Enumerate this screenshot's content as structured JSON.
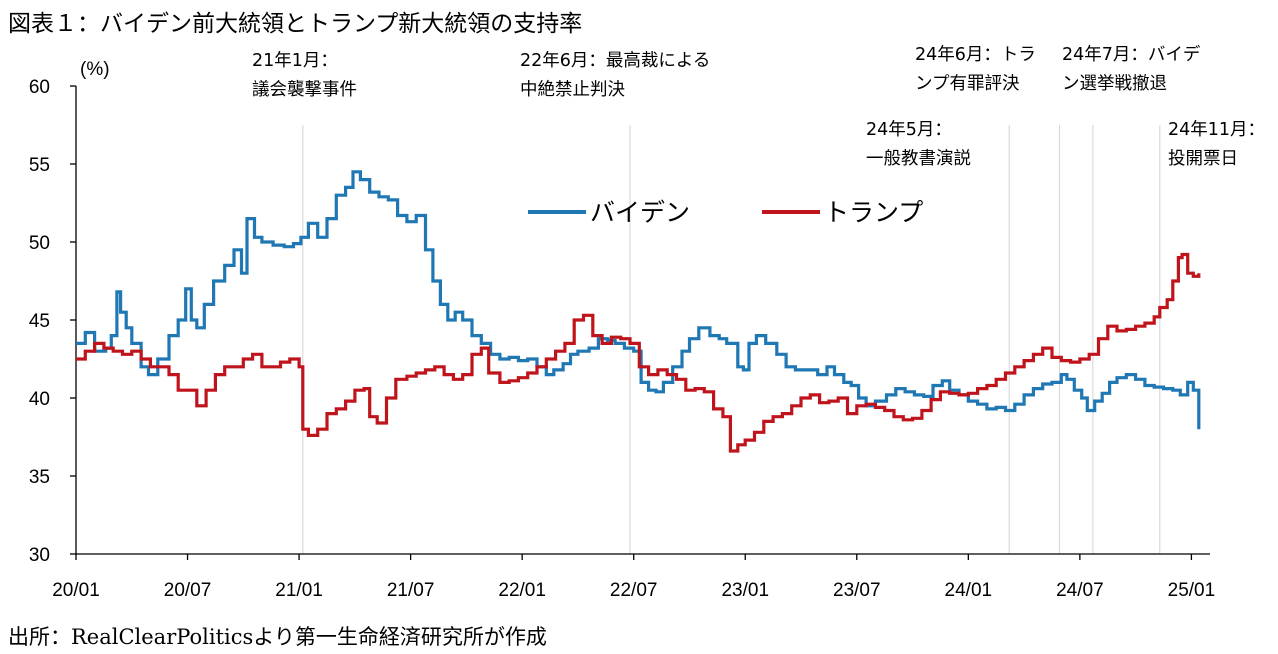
{
  "title": "図表１：バイデン前大統領とトランプ新大統領の支持率",
  "source": "出所：RealClearPoliticsより第一生命経済研究所が作成",
  "chart_data": {
    "type": "line",
    "title": "図表１：バイデン前大統領とトランプ新大統領の支持率",
    "ylabel": "(%)",
    "xlabel": "",
    "ylim": [
      30,
      60
    ],
    "yticks": [
      "30",
      "35",
      "40",
      "45",
      "50",
      "55",
      "60"
    ],
    "x_range_months": [
      0,
      61
    ],
    "xticks": [
      {
        "label": "20/01",
        "m": 0
      },
      {
        "label": "20/07",
        "m": 6
      },
      {
        "label": "21/01",
        "m": 12
      },
      {
        "label": "21/07",
        "m": 18
      },
      {
        "label": "22/01",
        "m": 24
      },
      {
        "label": "22/07",
        "m": 30
      },
      {
        "label": "23/01",
        "m": 36
      },
      {
        "label": "23/07",
        "m": 42
      },
      {
        "label": "24/01",
        "m": 48
      },
      {
        "label": "24/07",
        "m": 54
      },
      {
        "label": "25/01",
        "m": 60
      }
    ],
    "legend": {
      "placement": "top-center"
    },
    "series": [
      {
        "name": "バイデン",
        "color": "#1f77b4",
        "points": [
          [
            0.0,
            43.5
          ],
          [
            0.5,
            44.2
          ],
          [
            1.0,
            43.0
          ],
          [
            1.6,
            43.2
          ],
          [
            1.9,
            44.0
          ],
          [
            2.2,
            46.8
          ],
          [
            2.4,
            45.5
          ],
          [
            2.7,
            44.5
          ],
          [
            3.0,
            43.5
          ],
          [
            3.5,
            42.0
          ],
          [
            3.9,
            41.5
          ],
          [
            4.4,
            42.5
          ],
          [
            5.0,
            44.0
          ],
          [
            5.5,
            45.0
          ],
          [
            5.9,
            47.0
          ],
          [
            6.2,
            45.0
          ],
          [
            6.5,
            44.5
          ],
          [
            6.9,
            46.0
          ],
          [
            7.4,
            47.5
          ],
          [
            8.0,
            48.5
          ],
          [
            8.5,
            49.5
          ],
          [
            8.9,
            48.0
          ],
          [
            9.2,
            51.5
          ],
          [
            9.6,
            50.3
          ],
          [
            10.0,
            50.0
          ],
          [
            10.6,
            49.8
          ],
          [
            11.2,
            49.7
          ],
          [
            11.7,
            49.9
          ],
          [
            12.1,
            50.3
          ],
          [
            12.5,
            51.2
          ],
          [
            13.0,
            50.3
          ],
          [
            13.5,
            51.5
          ],
          [
            14.0,
            53.0
          ],
          [
            14.5,
            53.5
          ],
          [
            14.9,
            54.5
          ],
          [
            15.3,
            54.0
          ],
          [
            15.8,
            53.2
          ],
          [
            16.3,
            52.9
          ],
          [
            16.8,
            52.7
          ],
          [
            17.3,
            51.7
          ],
          [
            17.8,
            51.3
          ],
          [
            18.3,
            51.7
          ],
          [
            18.8,
            49.5
          ],
          [
            19.2,
            47.5
          ],
          [
            19.6,
            46.0
          ],
          [
            20.0,
            45.0
          ],
          [
            20.4,
            45.5
          ],
          [
            20.8,
            45.0
          ],
          [
            21.3,
            44.0
          ],
          [
            21.8,
            43.5
          ],
          [
            22.3,
            42.8
          ],
          [
            22.8,
            42.5
          ],
          [
            23.3,
            42.6
          ],
          [
            23.8,
            42.4
          ],
          [
            24.3,
            42.5
          ],
          [
            24.8,
            42.0
          ],
          [
            25.3,
            41.5
          ],
          [
            25.7,
            41.8
          ],
          [
            26.2,
            42.2
          ],
          [
            26.6,
            42.8
          ],
          [
            27.0,
            43.0
          ],
          [
            27.6,
            43.2
          ],
          [
            28.1,
            43.8
          ],
          [
            28.6,
            43.7
          ],
          [
            29.0,
            43.5
          ],
          [
            29.5,
            43.2
          ],
          [
            30.0,
            43.0
          ],
          [
            30.4,
            41.0
          ],
          [
            30.8,
            40.5
          ],
          [
            31.2,
            40.4
          ],
          [
            31.6,
            41.0
          ],
          [
            32.1,
            42.0
          ],
          [
            32.6,
            43.0
          ],
          [
            33.0,
            43.8
          ],
          [
            33.5,
            44.5
          ],
          [
            34.1,
            44.0
          ],
          [
            34.6,
            43.8
          ],
          [
            35.0,
            43.5
          ],
          [
            35.6,
            42.0
          ],
          [
            35.9,
            41.8
          ],
          [
            36.2,
            43.5
          ],
          [
            36.6,
            44.0
          ],
          [
            37.1,
            43.5
          ],
          [
            37.7,
            42.8
          ],
          [
            38.2,
            42.0
          ],
          [
            38.7,
            41.8
          ],
          [
            39.3,
            41.8
          ],
          [
            39.9,
            41.5
          ],
          [
            40.4,
            42.0
          ],
          [
            40.8,
            41.5
          ],
          [
            41.3,
            41.0
          ],
          [
            41.7,
            40.8
          ],
          [
            42.1,
            40.0
          ],
          [
            42.5,
            39.5
          ],
          [
            43.0,
            39.8
          ],
          [
            43.6,
            40.2
          ],
          [
            44.1,
            40.6
          ],
          [
            44.6,
            40.4
          ],
          [
            45.1,
            40.2
          ],
          [
            45.6,
            40.1
          ],
          [
            46.1,
            40.8
          ],
          [
            46.6,
            41.1
          ],
          [
            47.0,
            40.5
          ],
          [
            47.5,
            40.2
          ],
          [
            48.0,
            39.8
          ],
          [
            48.5,
            39.6
          ],
          [
            49.0,
            39.3
          ],
          [
            49.5,
            39.4
          ],
          [
            50.0,
            39.2
          ],
          [
            50.5,
            39.6
          ],
          [
            51.0,
            40.2
          ],
          [
            51.5,
            40.6
          ],
          [
            52.0,
            40.9
          ],
          [
            52.5,
            41.0
          ],
          [
            53.0,
            41.5
          ],
          [
            53.3,
            41.2
          ],
          [
            53.7,
            40.5
          ],
          [
            54.1,
            40.0
          ],
          [
            54.4,
            39.2
          ],
          [
            54.8,
            39.8
          ],
          [
            55.2,
            40.3
          ],
          [
            55.6,
            41.0
          ],
          [
            56.0,
            41.3
          ],
          [
            56.5,
            41.5
          ],
          [
            57.0,
            41.2
          ],
          [
            57.5,
            40.8
          ],
          [
            58.0,
            40.7
          ],
          [
            58.5,
            40.6
          ],
          [
            59.0,
            40.5
          ],
          [
            59.4,
            40.2
          ],
          [
            59.8,
            41.0
          ],
          [
            60.1,
            40.5
          ],
          [
            60.4,
            38.0
          ]
        ]
      },
      {
        "name": "トランプ",
        "color": "#c0141c",
        "points": [
          [
            0.0,
            42.5
          ],
          [
            0.5,
            43.0
          ],
          [
            1.0,
            43.5
          ],
          [
            1.5,
            43.2
          ],
          [
            2.0,
            43.0
          ],
          [
            2.5,
            42.8
          ],
          [
            3.0,
            43.0
          ],
          [
            3.5,
            42.5
          ],
          [
            4.0,
            42.0
          ],
          [
            4.5,
            42.0
          ],
          [
            5.0,
            41.5
          ],
          [
            5.5,
            40.5
          ],
          [
            6.0,
            40.5
          ],
          [
            6.5,
            39.5
          ],
          [
            7.0,
            40.5
          ],
          [
            7.5,
            41.5
          ],
          [
            8.0,
            42.0
          ],
          [
            8.5,
            42.0
          ],
          [
            9.0,
            42.5
          ],
          [
            9.5,
            42.8
          ],
          [
            10.0,
            42.0
          ],
          [
            10.5,
            42.0
          ],
          [
            11.0,
            42.3
          ],
          [
            11.5,
            42.5
          ],
          [
            12.0,
            42.0
          ],
          [
            12.2,
            38.0
          ],
          [
            12.5,
            37.6
          ],
          [
            13.0,
            38.0
          ],
          [
            13.5,
            39.0
          ],
          [
            14.0,
            39.3
          ],
          [
            14.5,
            39.8
          ],
          [
            15.0,
            40.5
          ],
          [
            15.5,
            40.6
          ],
          [
            15.8,
            38.8
          ],
          [
            16.2,
            38.4
          ],
          [
            16.7,
            40.0
          ],
          [
            17.2,
            41.2
          ],
          [
            17.8,
            41.4
          ],
          [
            18.3,
            41.6
          ],
          [
            18.8,
            41.8
          ],
          [
            19.3,
            42.0
          ],
          [
            19.8,
            41.5
          ],
          [
            20.3,
            41.2
          ],
          [
            20.8,
            41.5
          ],
          [
            21.3,
            42.8
          ],
          [
            21.8,
            43.2
          ],
          [
            22.2,
            41.6
          ],
          [
            22.8,
            41.0
          ],
          [
            23.3,
            41.1
          ],
          [
            23.8,
            41.3
          ],
          [
            24.3,
            41.6
          ],
          [
            24.8,
            42.0
          ],
          [
            25.3,
            42.5
          ],
          [
            25.8,
            43.0
          ],
          [
            26.3,
            43.5
          ],
          [
            26.8,
            45.0
          ],
          [
            27.3,
            45.3
          ],
          [
            27.8,
            44.0
          ],
          [
            28.3,
            43.5
          ],
          [
            28.8,
            43.9
          ],
          [
            29.3,
            43.8
          ],
          [
            29.8,
            43.5
          ],
          [
            30.3,
            42.0
          ],
          [
            30.8,
            41.5
          ],
          [
            31.3,
            41.8
          ],
          [
            31.8,
            41.5
          ],
          [
            32.3,
            41.2
          ],
          [
            32.8,
            40.5
          ],
          [
            33.3,
            40.6
          ],
          [
            33.8,
            40.4
          ],
          [
            34.3,
            39.3
          ],
          [
            34.8,
            38.8
          ],
          [
            35.2,
            36.6
          ],
          [
            35.6,
            37.0
          ],
          [
            36.0,
            37.3
          ],
          [
            36.5,
            37.8
          ],
          [
            37.0,
            38.5
          ],
          [
            37.5,
            38.8
          ],
          [
            38.0,
            39.0
          ],
          [
            38.5,
            39.5
          ],
          [
            39.0,
            40.0
          ],
          [
            39.5,
            40.2
          ],
          [
            40.0,
            39.7
          ],
          [
            40.5,
            39.8
          ],
          [
            41.0,
            40.0
          ],
          [
            41.5,
            39.0
          ],
          [
            42.0,
            39.5
          ],
          [
            42.5,
            39.6
          ],
          [
            43.0,
            39.4
          ],
          [
            43.5,
            39.2
          ],
          [
            44.0,
            38.8
          ],
          [
            44.5,
            38.6
          ],
          [
            45.0,
            38.7
          ],
          [
            45.5,
            39.2
          ],
          [
            46.0,
            39.9
          ],
          [
            46.5,
            40.4
          ],
          [
            47.0,
            40.3
          ],
          [
            47.5,
            40.2
          ],
          [
            48.0,
            40.3
          ],
          [
            48.5,
            40.6
          ],
          [
            49.0,
            40.8
          ],
          [
            49.5,
            41.2
          ],
          [
            50.0,
            41.6
          ],
          [
            50.5,
            42.0
          ],
          [
            51.0,
            42.4
          ],
          [
            51.5,
            42.8
          ],
          [
            52.0,
            43.2
          ],
          [
            52.5,
            42.6
          ],
          [
            53.0,
            42.4
          ],
          [
            53.5,
            42.3
          ],
          [
            54.0,
            42.5
          ],
          [
            54.5,
            42.8
          ],
          [
            55.0,
            43.8
          ],
          [
            55.5,
            44.6
          ],
          [
            56.0,
            44.3
          ],
          [
            56.5,
            44.4
          ],
          [
            57.0,
            44.6
          ],
          [
            57.5,
            44.8
          ],
          [
            58.0,
            45.2
          ],
          [
            58.3,
            45.8
          ],
          [
            58.7,
            46.3
          ],
          [
            59.0,
            47.5
          ],
          [
            59.3,
            49.0
          ],
          [
            59.5,
            49.2
          ],
          [
            59.8,
            48.0
          ],
          [
            60.1,
            47.8
          ],
          [
            60.4,
            48.0
          ]
        ]
      }
    ],
    "annotations": [
      {
        "m": 12.2,
        "lines": [
          "21年1月：",
          "議会襲撃事件"
        ]
      },
      {
        "m": 29.8,
        "lines": [
          "22年6月：最高裁による",
          "中絶禁止判決"
        ]
      },
      {
        "m": 50.2,
        "lines": [
          "24年5月：",
          "一般教書演説"
        ]
      },
      {
        "m": 52.9,
        "lines": [
          "24年6月：トラ",
          "ンプ有罪評決"
        ]
      },
      {
        "m": 54.7,
        "lines": [
          "24年7月：バイデ",
          "ン選挙戦撤退"
        ]
      },
      {
        "m": 58.3,
        "lines": [
          "24年11月：",
          "投開票日"
        ]
      }
    ]
  }
}
